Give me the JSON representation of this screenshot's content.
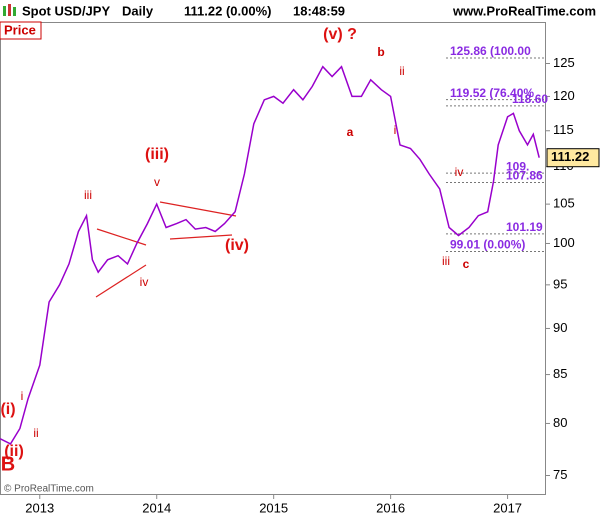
{
  "chart_data": {
    "type": "line",
    "title": "Spot USD/JPY",
    "period": "Daily",
    "last_label": "111.22 (0.00%)",
    "time": "18:48:59",
    "source": "www.ProRealTime.com",
    "panel_label": "Price",
    "copyright": "© ProRealTime.com",
    "log_scale": true,
    "xlim": [
      2012.66,
      2017.32
    ],
    "xticks": [
      2013,
      2014,
      2015,
      2016,
      2017
    ],
    "ylim": [
      73.3,
      131.6
    ],
    "yticks": [
      75,
      80,
      85,
      90,
      95,
      100,
      105,
      110,
      115,
      120,
      125
    ],
    "series": [
      {
        "color": "#9900cc",
        "x": [
          2012.66,
          2012.75,
          2012.83,
          2012.9,
          2013.0,
          2013.08,
          2013.17,
          2013.25,
          2013.33,
          2013.4,
          2013.45,
          2013.5,
          2013.58,
          2013.67,
          2013.75,
          2013.83,
          2013.92,
          2014.0,
          2014.08,
          2014.17,
          2014.25,
          2014.33,
          2014.42,
          2014.5,
          2014.58,
          2014.67,
          2014.75,
          2014.83,
          2014.92,
          2015.0,
          2015.08,
          2015.17,
          2015.25,
          2015.33,
          2015.42,
          2015.5,
          2015.58,
          2015.67,
          2015.75,
          2015.83,
          2015.92,
          2016.0,
          2016.08,
          2016.17,
          2016.25,
          2016.33,
          2016.42,
          2016.5,
          2016.58,
          2016.67,
          2016.75,
          2016.83,
          2016.88,
          2016.92,
          2017.0,
          2017.05,
          2017.1,
          2017.17,
          2017.22,
          2017.27
        ],
        "values": [
          78.5,
          78,
          79.5,
          82.5,
          86,
          93,
          95,
          97.5,
          101.5,
          103.5,
          98,
          96.5,
          98,
          98.5,
          97.5,
          100,
          102.5,
          105,
          102,
          102.5,
          103,
          101.8,
          102,
          101.5,
          102.5,
          104,
          109,
          116,
          119.5,
          120,
          119,
          121,
          119.5,
          121.5,
          124.5,
          123,
          124.5,
          120,
          120,
          122.5,
          121,
          120,
          113,
          112.5,
          111,
          109,
          107,
          102,
          101,
          102,
          103.5,
          104,
          108,
          113,
          117,
          117.5,
          115,
          113,
          114.5,
          111.22
        ]
      }
    ],
    "levels": [
      {
        "value": 125.86,
        "label": "125.86 (100.00"
      },
      {
        "value": 119.52,
        "label": "119.52 (76.40%"
      },
      {
        "value": 118.6,
        "label": "118.60"
      },
      {
        "value": 109.12,
        "label": "109."
      },
      {
        "value": 107.86,
        "label": "107.86"
      },
      {
        "value": 101.19,
        "label": "101.19"
      },
      {
        "value": 99.01,
        "label": "99.01 (0.00%)"
      }
    ],
    "annotations": [
      "(i)",
      "i",
      "ii",
      "(ii)",
      "B",
      "iii",
      "iv",
      "(iii)",
      "v",
      "(iv)",
      "(v) ?",
      "a",
      "b",
      "i",
      "ii",
      "iv",
      "iii",
      "c"
    ]
  }
}
